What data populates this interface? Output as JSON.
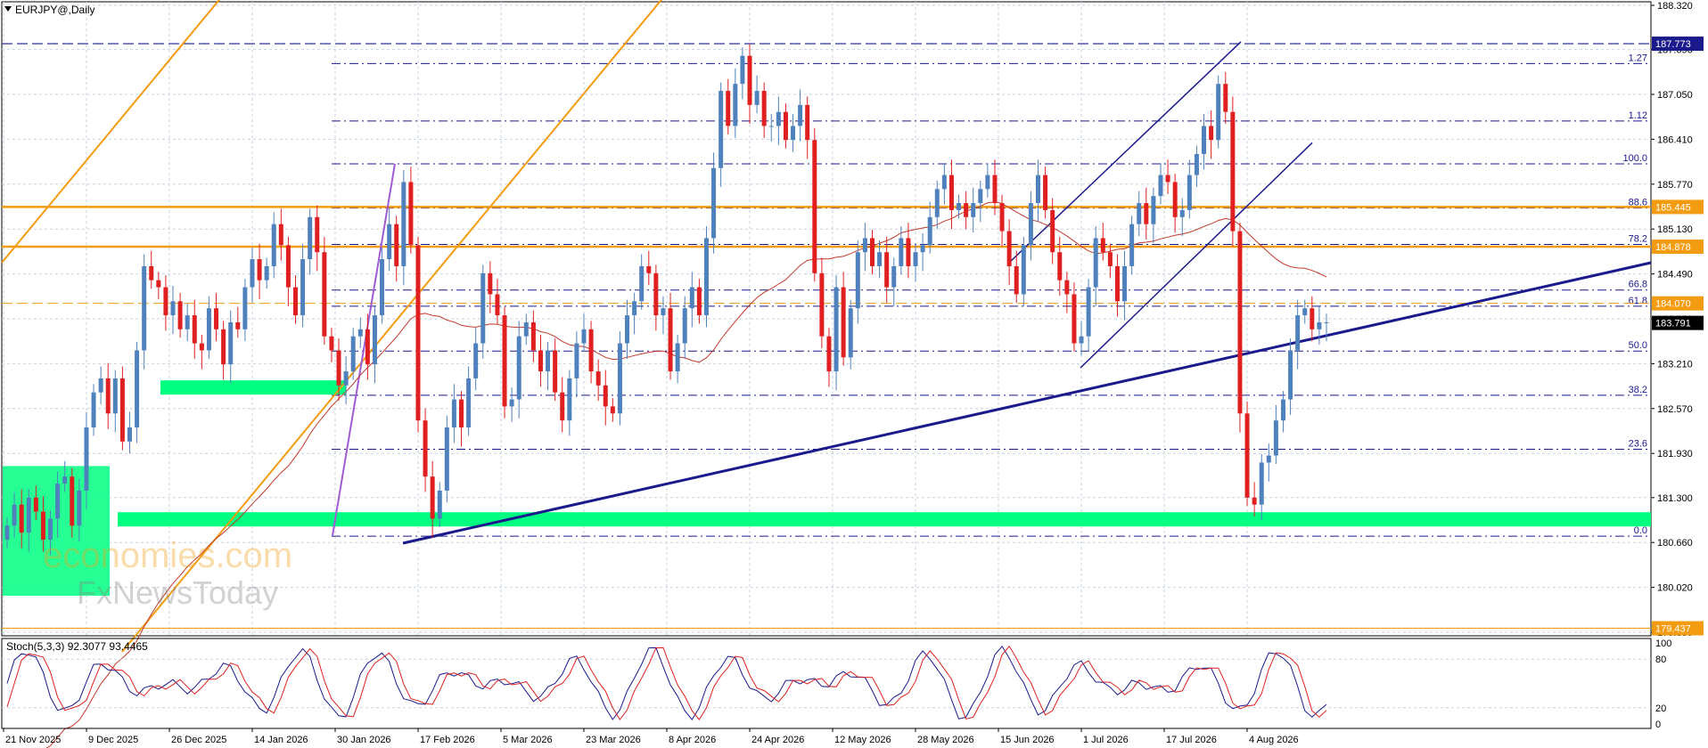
{
  "window": {
    "title": "EURJPY@,Daily",
    "stoch_label": "Stoch(5,3,3) 92.3077 93.4465"
  },
  "watermark": {
    "line1": "economies.com",
    "line2": "FxNewsToday"
  },
  "colors": {
    "background": "#ffffff",
    "grid": "#c8d3e0",
    "bull": "#4f81bd",
    "bear": "#e02020",
    "ma": "#c0392b",
    "orange": "#f39c12",
    "navy": "#1a1a8c",
    "green_zone": "#00ff80",
    "stoch_main": "#1a1a8c",
    "stoch_signal": "#e02020"
  },
  "price_axis": {
    "ticks": [
      "188.320",
      "187.690",
      "187.050",
      "186.410",
      "185.770",
      "185.130",
      "184.490",
      "183.850",
      "183.210",
      "182.570",
      "181.930",
      "181.300",
      "180.660",
      "180.020",
      "179.380"
    ],
    "tags": [
      {
        "name": "level-187773",
        "text": "187.773",
        "price": 187.773,
        "bg": "#1a1a8c",
        "fg": "#ffffff"
      },
      {
        "name": "level-185445",
        "text": "185.445",
        "price": 185.445,
        "bg": "#f39c12",
        "fg": "#ffffff"
      },
      {
        "name": "level-184878",
        "text": "184.878",
        "price": 184.878,
        "bg": "#f39c12",
        "fg": "#ffffff"
      },
      {
        "name": "level-184070",
        "text": "184.070",
        "price": 184.07,
        "bg": "#f39c12",
        "fg": "#ffffff"
      },
      {
        "name": "last-price",
        "text": "183.791",
        "price": 183.791,
        "bg": "#000000",
        "fg": "#ffffff"
      },
      {
        "name": "level-179437",
        "text": "179.437",
        "price": 179.437,
        "bg": "#f39c12",
        "fg": "#ffffff"
      }
    ]
  },
  "stoch_axis": {
    "ticks": [
      {
        "label": "100",
        "v": 100
      },
      {
        "label": "80",
        "v": 80
      },
      {
        "label": "20",
        "v": 20
      },
      {
        "label": "0",
        "v": 0
      }
    ]
  },
  "date_axis": {
    "labels": [
      "21 Nov 2025",
      "9 Dec 2025",
      "26 Dec 2025",
      "14 Jan 2026",
      "30 Jan 2026",
      "17 Feb 2026",
      "5 Mar 2026",
      "23 Mar 2026",
      "8 Apr 2026",
      "24 Apr 2026",
      "12 May 2026",
      "28 May 2026",
      "15 Jun 2026",
      "1 Jul 2026",
      "17 Jul 2026",
      "4 Aug 2026"
    ]
  },
  "fibonacci": {
    "levels": [
      {
        "label": "1.27",
        "price": 187.49
      },
      {
        "label": "1.12",
        "price": 186.67
      },
      {
        "label": "100.0",
        "price": 186.06
      },
      {
        "label": "88.6",
        "price": 185.43
      },
      {
        "label": "78.2",
        "price": 184.91
      },
      {
        "label": "66.8",
        "price": 184.26
      },
      {
        "label": "61.8",
        "price": 184.03
      },
      {
        "label": "50.0",
        "price": 183.39
      },
      {
        "label": "38.2",
        "price": 182.76
      },
      {
        "label": "23.6",
        "price": 181.99
      },
      {
        "label": "0.0",
        "price": 180.75
      }
    ]
  },
  "chart_data": {
    "type": "candlestick",
    "title": "EURJPY@,Daily",
    "symbol": "EURJPY@",
    "timeframe": "Daily",
    "ylim": [
      179.38,
      188.32
    ],
    "x_labels": [
      "21 Nov 2025",
      "9 Dec 2025",
      "26 Dec 2025",
      "14 Jan 2026",
      "30 Jan 2026",
      "17 Feb 2026",
      "5 Mar 2026",
      "23 Mar 2026",
      "8 Apr 2026",
      "24 Apr 2026",
      "12 May 2026",
      "28 May 2026",
      "15 Jun 2026",
      "1 Jul 2026",
      "17 Jul 2026",
      "4 Aug 2026"
    ],
    "closes": [
      180.9,
      181.2,
      180.8,
      181.3,
      181.1,
      180.7,
      181.0,
      181.5,
      181.6,
      180.9,
      181.4,
      182.3,
      182.8,
      183.0,
      182.5,
      183.0,
      182.1,
      182.3,
      183.4,
      184.6,
      184.4,
      184.3,
      183.9,
      184.1,
      183.7,
      183.9,
      183.5,
      183.4,
      184.0,
      183.7,
      183.2,
      183.8,
      183.7,
      184.3,
      184.7,
      184.4,
      184.6,
      185.2,
      184.9,
      184.3,
      183.9,
      184.7,
      185.3,
      184.8,
      183.6,
      183.4,
      182.9,
      183.1,
      183.6,
      183.7,
      183.2,
      183.9,
      184.7,
      185.2,
      184.6,
      185.8,
      184.9,
      182.4,
      181.6,
      181.0,
      181.4,
      182.3,
      182.7,
      182.3,
      183.0,
      183.5,
      184.5,
      184.2,
      183.9,
      182.6,
      182.7,
      183.6,
      183.8,
      183.4,
      183.1,
      183.4,
      182.8,
      182.4,
      183.0,
      183.5,
      183.7,
      183.1,
      182.9,
      182.6,
      182.5,
      183.5,
      183.9,
      184.1,
      184.6,
      184.5,
      183.9,
      184.0,
      183.1,
      183.5,
      184.0,
      184.3,
      183.9,
      185.0,
      186.0,
      187.1,
      186.6,
      187.2,
      187.6,
      186.9,
      187.1,
      186.6,
      186.6,
      186.8,
      186.4,
      186.6,
      186.9,
      186.4,
      184.5,
      183.6,
      183.1,
      184.3,
      183.3,
      184.0,
      184.8,
      185.0,
      184.6,
      184.8,
      184.3,
      184.6,
      185.0,
      184.6,
      184.8,
      184.9,
      185.3,
      185.7,
      185.9,
      185.4,
      185.5,
      185.3,
      185.5,
      185.7,
      185.9,
      185.5,
      185.1,
      184.6,
      184.2,
      184.9,
      185.5,
      185.9,
      185.4,
      184.8,
      184.4,
      184.2,
      183.5,
      183.6,
      184.3,
      185.0,
      184.8,
      184.6,
      184.1,
      184.6,
      185.2,
      185.5,
      185.2,
      185.6,
      185.9,
      185.8,
      185.3,
      185.4,
      185.9,
      186.2,
      186.6,
      186.4,
      187.2,
      186.8,
      185.1,
      182.5,
      181.3,
      181.2,
      181.8,
      181.9,
      182.4,
      182.7,
      183.4,
      183.9,
      184.0,
      183.7,
      183.8,
      183.8
    ],
    "last_close": 183.791,
    "fib_retracement": [
      {
        "level": "1.27",
        "price": 187.49
      },
      {
        "level": "1.12",
        "price": 186.67
      },
      {
        "level": "100.0",
        "price": 186.06
      },
      {
        "level": "88.6",
        "price": 185.43
      },
      {
        "level": "78.2",
        "price": 184.91
      },
      {
        "level": "66.8",
        "price": 184.26
      },
      {
        "level": "61.8",
        "price": 184.03
      },
      {
        "level": "50.0",
        "price": 183.39
      },
      {
        "level": "38.2",
        "price": 182.76
      },
      {
        "level": "23.6",
        "price": 181.99
      },
      {
        "level": "0.0",
        "price": 180.75
      }
    ],
    "horizontal_levels": [
      187.773,
      185.445,
      184.878,
      184.07,
      179.437
    ],
    "support_zones": [
      [
        180.9,
        181.05
      ],
      [
        182.8,
        182.95
      ],
      [
        179.9,
        181.75
      ]
    ],
    "stochastic": {
      "params": "5,3,3",
      "main": 92.3077,
      "signal": 93.4465,
      "levels": [
        80,
        20
      ],
      "ylim": [
        0,
        100
      ]
    }
  }
}
